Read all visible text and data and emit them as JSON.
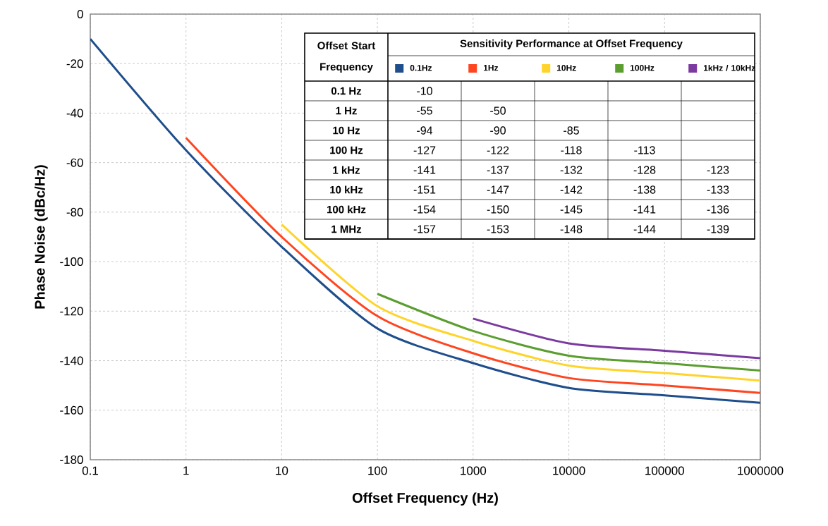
{
  "chart_data": [
    {
      "type": "line",
      "xlabel": "Offset Frequency  (Hz)",
      "ylabel": "Phase Noise  (dBc/Hz)",
      "x": [
        0.1,
        1,
        10,
        100,
        1000,
        10000,
        100000,
        1000000
      ],
      "series": [
        {
          "name": "0.1Hz",
          "color": "#1f4e8c",
          "values": [
            -10,
            -55,
            -94,
            -127,
            -141,
            -151,
            -154,
            -157
          ]
        },
        {
          "name": "1Hz",
          "color": "#ff4520",
          "values": [
            null,
            -50,
            -90,
            -122,
            -137,
            -147,
            -150,
            -153
          ]
        },
        {
          "name": "10Hz",
          "color": "#ffd42a",
          "values": [
            null,
            null,
            -85,
            -118,
            -132,
            -142,
            -145,
            -148
          ]
        },
        {
          "name": "100Hz",
          "color": "#5b9e2f",
          "values": [
            null,
            null,
            null,
            -113,
            -128,
            -138,
            -141,
            -144
          ]
        },
        {
          "name": "1kHz / 10kHz",
          "color": "#7b3aa0",
          "values": [
            null,
            null,
            null,
            null,
            -123,
            -133,
            -136,
            -139
          ]
        }
      ],
      "xlim": [
        0.1,
        1000000
      ],
      "ylim": [
        -180,
        0
      ],
      "xticks": [
        0.1,
        1,
        10,
        100,
        1000,
        10000,
        100000,
        1000000
      ],
      "yticks": [
        -180,
        -160,
        -140,
        -120,
        -100,
        -80,
        -60,
        -40,
        -20,
        0
      ],
      "log": "x",
      "grid": true,
      "legend": "top right",
      "marker": "none",
      "line_style": "solid"
    },
    {
      "type": "other",
      "title": "Sensitivity Performance at Offset Frequency",
      "ylabel": "Offset Start Frequency",
      "y_categories": [
        "0.1 Hz",
        "1 Hz",
        "10 Hz",
        "100 Hz",
        "1 kHz",
        "10 kHz",
        "100 kHz",
        "1 MHz"
      ],
      "cell_labels": [
        [
          "-10",
          null,
          null,
          null,
          null
        ],
        [
          "-55",
          "-50",
          null,
          null,
          null
        ],
        [
          "-94",
          "-90",
          "-85",
          null,
          null
        ],
        [
          "-127",
          "-122",
          "-118",
          "-113",
          null
        ],
        [
          "-141",
          "-137",
          "-132",
          "-128",
          "-123"
        ],
        [
          "-151",
          "-147",
          "-142",
          "-138",
          "-133"
        ],
        [
          "-154",
          "-150",
          "-145",
          "-141",
          "-136"
        ],
        [
          "-157",
          "-153",
          "-148",
          "-144",
          "-139"
        ]
      ]
    }
  ]
}
